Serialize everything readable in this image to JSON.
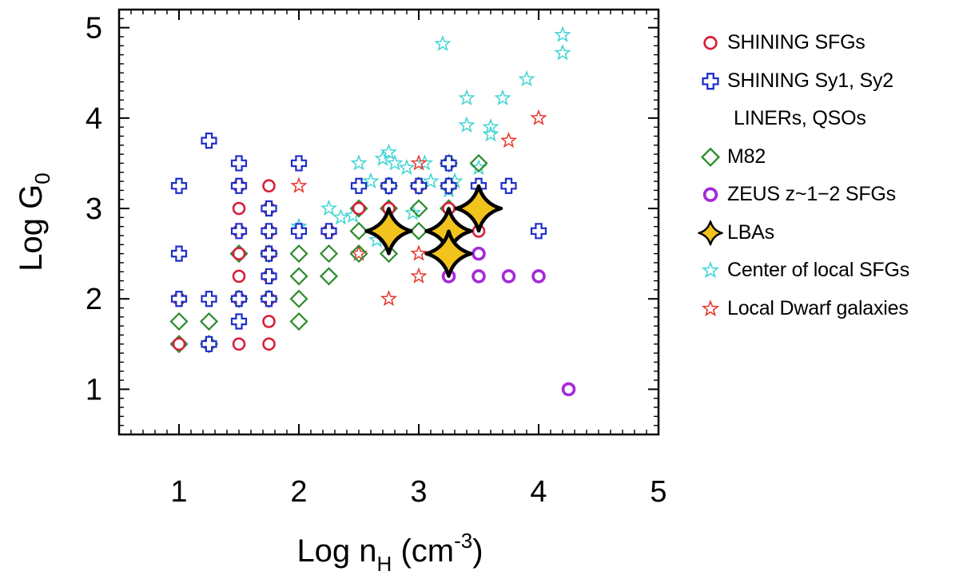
{
  "chart_data": {
    "type": "scatter",
    "title": "",
    "xlabel": {
      "main": "Log n",
      "sub": "H",
      "unit_open": " (cm",
      "sup": "-3",
      "unit_close": ")"
    },
    "ylabel": {
      "main": "Log G",
      "sub": "0"
    },
    "xlim": [
      0.5,
      5.0
    ],
    "ylim": [
      0.5,
      5.2
    ],
    "xticks": [
      1,
      2,
      3,
      4,
      5
    ],
    "yticks": [
      1,
      2,
      3,
      4,
      5
    ],
    "x_minor_step": 0.1,
    "y_minor_step": 0.1,
    "legend_position": "outside-right",
    "series": [
      {
        "name": "SHINING SFGs",
        "marker": "circle",
        "color": "#d81e3a",
        "points": [
          [
            1.0,
            2.0
          ],
          [
            1.0,
            1.5
          ],
          [
            1.5,
            3.25
          ],
          [
            1.5,
            3.0
          ],
          [
            1.5,
            2.75
          ],
          [
            1.5,
            2.5
          ],
          [
            1.5,
            2.25
          ],
          [
            1.5,
            2.0
          ],
          [
            1.5,
            1.5
          ],
          [
            1.75,
            3.25
          ],
          [
            1.75,
            3.0
          ],
          [
            1.75,
            2.75
          ],
          [
            1.75,
            2.5
          ],
          [
            1.75,
            2.25
          ],
          [
            1.75,
            2.0
          ],
          [
            1.75,
            1.75
          ],
          [
            1.75,
            1.5
          ],
          [
            2.25,
            2.75
          ],
          [
            2.5,
            3.0
          ],
          [
            2.75,
            3.0
          ],
          [
            3.0,
            3.25
          ],
          [
            3.25,
            3.0
          ],
          [
            3.5,
            2.75
          ]
        ]
      },
      {
        "name": "SHINING Sy1, Sy2",
        "name_cont": "LINERs, QSOs",
        "marker": "plus",
        "color": "#1f2fc8",
        "points": [
          [
            1.0,
            3.25
          ],
          [
            1.0,
            2.5
          ],
          [
            1.0,
            2.0
          ],
          [
            1.25,
            3.75
          ],
          [
            1.25,
            2.0
          ],
          [
            1.25,
            1.5
          ],
          [
            1.5,
            3.5
          ],
          [
            1.5,
            3.25
          ],
          [
            1.5,
            2.75
          ],
          [
            1.5,
            2.0
          ],
          [
            1.5,
            1.75
          ],
          [
            1.75,
            3.0
          ],
          [
            1.75,
            2.75
          ],
          [
            1.75,
            2.5
          ],
          [
            1.75,
            2.25
          ],
          [
            1.75,
            2.0
          ],
          [
            2.0,
            3.5
          ],
          [
            2.0,
            2.75
          ],
          [
            2.25,
            2.75
          ],
          [
            2.5,
            3.25
          ],
          [
            2.75,
            3.25
          ],
          [
            2.75,
            2.75
          ],
          [
            3.0,
            3.25
          ],
          [
            3.25,
            3.5
          ],
          [
            3.25,
            3.25
          ],
          [
            3.5,
            3.25
          ],
          [
            3.75,
            3.25
          ],
          [
            4.0,
            2.75
          ]
        ]
      },
      {
        "name": "M82",
        "marker": "diamond",
        "color": "#2e8b2e",
        "points": [
          [
            1.0,
            1.75
          ],
          [
            1.0,
            1.5
          ],
          [
            1.25,
            1.75
          ],
          [
            1.25,
            1.5
          ],
          [
            1.5,
            2.5
          ],
          [
            1.5,
            2.0
          ],
          [
            1.75,
            2.5
          ],
          [
            1.75,
            2.0
          ],
          [
            2.0,
            2.5
          ],
          [
            2.0,
            2.25
          ],
          [
            2.0,
            2.0
          ],
          [
            2.0,
            1.75
          ],
          [
            2.25,
            2.5
          ],
          [
            2.25,
            2.25
          ],
          [
            2.5,
            3.0
          ],
          [
            2.5,
            2.75
          ],
          [
            2.5,
            2.5
          ],
          [
            2.75,
            3.25
          ],
          [
            2.75,
            3.0
          ],
          [
            2.75,
            2.75
          ],
          [
            2.75,
            2.5
          ],
          [
            3.0,
            3.25
          ],
          [
            3.0,
            3.0
          ],
          [
            3.0,
            2.75
          ],
          [
            3.25,
            3.5
          ],
          [
            3.25,
            3.25
          ],
          [
            3.25,
            3.0
          ],
          [
            3.25,
            2.75
          ],
          [
            3.5,
            3.5
          ]
        ]
      },
      {
        "name": "ZEUS z~1−2 SFGs",
        "marker": "circle-thick",
        "color": "#a52ad8",
        "points": [
          [
            3.25,
            2.25
          ],
          [
            3.5,
            2.5
          ],
          [
            3.5,
            2.25
          ],
          [
            3.75,
            2.25
          ],
          [
            4.0,
            2.25
          ],
          [
            4.25,
            1.0
          ]
        ]
      },
      {
        "name": "LBAs",
        "marker": "star4",
        "color": "#f2c21d",
        "points": [
          [
            2.75,
            2.75
          ],
          [
            3.25,
            2.75
          ],
          [
            3.25,
            2.5
          ],
          [
            3.5,
            3.0
          ]
        ]
      },
      {
        "name": "Center of local SFGs",
        "marker": "star",
        "color": "#3fd4d4",
        "points": [
          [
            2.0,
            2.8
          ],
          [
            2.25,
            3.0
          ],
          [
            2.35,
            2.9
          ],
          [
            2.45,
            2.92
          ],
          [
            2.5,
            3.5
          ],
          [
            2.6,
            3.3
          ],
          [
            2.65,
            2.65
          ],
          [
            2.7,
            3.55
          ],
          [
            2.75,
            3.62
          ],
          [
            2.8,
            3.5
          ],
          [
            2.9,
            3.45
          ],
          [
            2.95,
            2.95
          ],
          [
            3.05,
            3.5
          ],
          [
            3.1,
            3.3
          ],
          [
            3.2,
            4.82
          ],
          [
            3.25,
            3.2
          ],
          [
            3.3,
            3.3
          ],
          [
            3.4,
            4.22
          ],
          [
            3.4,
            3.92
          ],
          [
            3.5,
            3.45
          ],
          [
            3.6,
            3.9
          ],
          [
            3.6,
            3.82
          ],
          [
            3.7,
            4.22
          ],
          [
            3.9,
            4.43
          ],
          [
            4.2,
            4.92
          ],
          [
            4.2,
            4.72
          ]
        ]
      },
      {
        "name": "Local Dwarf galaxies",
        "marker": "star",
        "color": "#e8342a",
        "points": [
          [
            2.0,
            3.25
          ],
          [
            2.5,
            2.5
          ],
          [
            2.75,
            2.0
          ],
          [
            3.0,
            3.5
          ],
          [
            3.0,
            2.5
          ],
          [
            3.0,
            2.25
          ],
          [
            3.75,
            3.75
          ],
          [
            4.0,
            4.0
          ]
        ]
      }
    ]
  }
}
